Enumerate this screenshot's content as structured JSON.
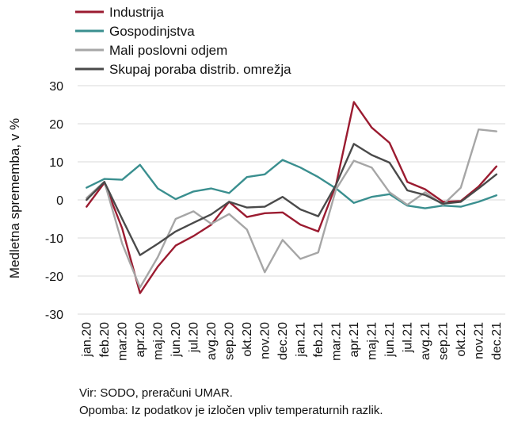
{
  "chart_data": {
    "type": "line",
    "title": "",
    "xlabel": "",
    "ylabel": "Medletna sprememba, v %",
    "ylim": [
      -30,
      30
    ],
    "yticks": [
      -30,
      -20,
      -10,
      0,
      10,
      20,
      30
    ],
    "grid": "horizontal",
    "legend_position": "top-left",
    "categories": [
      "jan.20",
      "feb.20",
      "mar.20",
      "apr.20",
      "maj.20",
      "jun.20",
      "jul.20",
      "avg.20",
      "sep.20",
      "okt.20",
      "nov.20",
      "dec.20",
      "jan.21",
      "feb.21",
      "mar.21",
      "apr.21",
      "maj.21",
      "jun.21",
      "jul.21",
      "avg.21",
      "sep.21",
      "okt.21",
      "nov.21",
      "dec.21"
    ],
    "series": [
      {
        "name": "Industrija",
        "color": "#9b1b30",
        "values": [
          -1.8,
          4.5,
          -7.5,
          -24.5,
          -17.5,
          -12.0,
          -9.5,
          -6.5,
          -0.5,
          -4.5,
          -3.5,
          -3.3,
          -6.5,
          -8.3,
          4.0,
          25.7,
          19.0,
          15.0,
          4.7,
          2.8,
          -0.5,
          -0.3,
          3.5,
          8.8
        ]
      },
      {
        "name": "Gospodinjstva",
        "color": "#3a8f8f",
        "values": [
          3.2,
          5.5,
          5.3,
          9.2,
          3.0,
          0.2,
          2.2,
          3.0,
          1.8,
          6.0,
          6.7,
          10.5,
          8.5,
          6.0,
          3.0,
          -0.8,
          0.8,
          1.5,
          -1.5,
          -2.2,
          -1.5,
          -1.8,
          -0.5,
          1.2
        ]
      },
      {
        "name": "Mali poslovni odjem",
        "color": "#a6a6a6",
        "values": [
          0.5,
          4.8,
          -11.5,
          -23.0,
          -15.0,
          -5.0,
          -3.0,
          -6.3,
          -3.7,
          -7.8,
          -19.0,
          -10.5,
          -15.5,
          -13.8,
          2.8,
          10.3,
          8.5,
          2.0,
          -1.3,
          2.0,
          -1.3,
          3.2,
          18.5,
          18.0
        ]
      },
      {
        "name": "Skupaj poraba distrib. omrežja",
        "color": "#4a4a4a",
        "values": [
          0.0,
          4.7,
          -5.0,
          -14.5,
          -11.5,
          -8.3,
          -6.0,
          -3.8,
          -0.5,
          -2.0,
          -1.8,
          0.8,
          -2.5,
          -4.3,
          4.0,
          14.7,
          11.8,
          9.8,
          2.5,
          1.3,
          -1.0,
          -0.5,
          3.0,
          6.7
        ]
      }
    ]
  },
  "notes": {
    "source": "Vir: SODO, preračuni UMAR.",
    "remark": "Opomba: Iz podatkov je izločen vpliv temperaturnih razlik."
  }
}
